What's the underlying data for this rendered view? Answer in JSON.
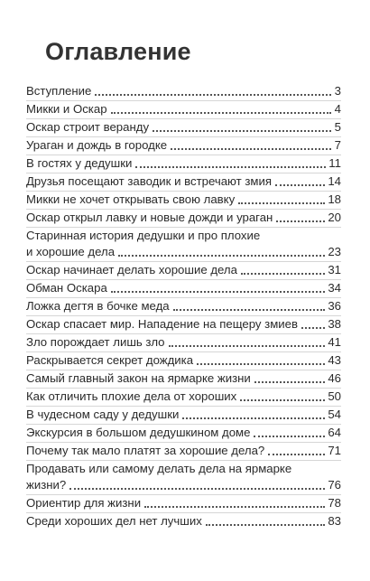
{
  "heading": "Оглавление",
  "entries": [
    {
      "title": "Вступление",
      "page": "3"
    },
    {
      "title": "Микки и Оскар",
      "page": "4"
    },
    {
      "title": "Оскар строит веранду",
      "page": "5"
    },
    {
      "title": "Ураган и дождь в городке",
      "page": "7"
    },
    {
      "title": "В гостях у дедушки",
      "page": "11"
    },
    {
      "title": "Друзья посещают заводик и встречают змия",
      "page": "14"
    },
    {
      "title": "Микки не хочет открывать свою лавку",
      "page": "18"
    },
    {
      "title": "Оскар открыл лавку и новые дожди и ураган",
      "page": "20"
    },
    {
      "title_line1": "Старинная история дедушки и про плохие",
      "title": "и хорошие дела",
      "page": "23"
    },
    {
      "title": "Оскар начинает делать хорошие дела",
      "page": "31"
    },
    {
      "title": "Обман Оскара",
      "page": "34"
    },
    {
      "title": "Ложка дегтя в бочке меда",
      "page": "36"
    },
    {
      "title": "Оскар спасает мир. Нападение на пещеру змиев",
      "page": "38"
    },
    {
      "title": "Зло порождает лишь зло",
      "page": "41"
    },
    {
      "title": "Раскрывается секрет дождика",
      "page": "43"
    },
    {
      "title": "Самый главный закон на ярмарке жизни",
      "page": "46"
    },
    {
      "title": "Как отличить плохие дела от хороших",
      "page": "50"
    },
    {
      "title": "В чудесном саду у дедушки",
      "page": "54"
    },
    {
      "title": "Экскурсия в большом дедушкином доме",
      "page": "64"
    },
    {
      "title": "Почему так мало платят за хорошие дела?",
      "page": "71"
    },
    {
      "title_line1": "Продавать или самому делать дела на ярмарке",
      "title": "жизни?",
      "page": "76"
    },
    {
      "title": "Ориентир для жизни",
      "page": "78"
    },
    {
      "title": "Среди хороших дел нет лучших",
      "page": "83"
    }
  ]
}
